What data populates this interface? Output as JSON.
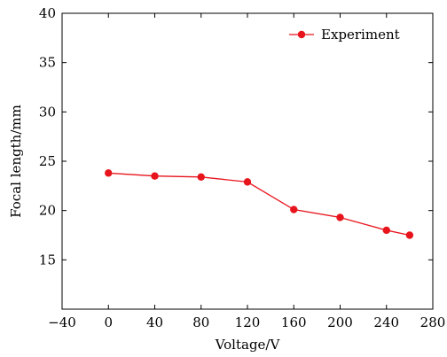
{
  "chart_data": {
    "type": "line",
    "xlabel": "Voltage/V",
    "ylabel": "Focal length/mm",
    "xlim": [
      -40,
      280
    ],
    "ylim": [
      10,
      40
    ],
    "x_ticks": [
      -40,
      0,
      40,
      80,
      120,
      160,
      200,
      240,
      280
    ],
    "x_tick_labels": [
      "−40",
      "0",
      "40",
      "80",
      "120",
      "160",
      "200",
      "240",
      "280"
    ],
    "y_ticks": [
      15,
      20,
      25,
      30,
      35,
      40
    ],
    "y_tick_labels": [
      "15",
      "20",
      "25",
      "30",
      "35",
      "40"
    ],
    "grid": false,
    "legend_position": "top-right",
    "series": [
      {
        "name": "Experiment",
        "color": "#e8141c",
        "marker": "circle",
        "x": [
          0,
          40,
          80,
          120,
          160,
          200,
          240,
          260
        ],
        "y": [
          23.8,
          23.5,
          23.4,
          22.9,
          20.1,
          19.3,
          18.0,
          17.5
        ]
      }
    ]
  }
}
